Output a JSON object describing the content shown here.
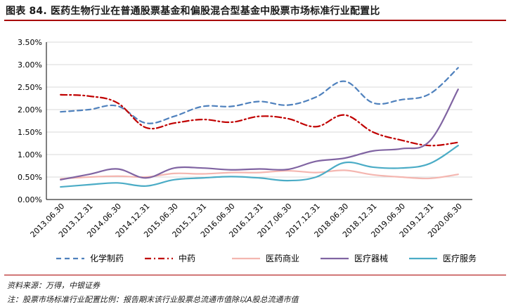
{
  "title": "图表 84. 医药生物行业在普通股票基金和偏股混合型基金中股票市场标准行业配置比",
  "source_note": "资料来源：万得，中银证券",
  "footnote": "注：股票市场标准行业配置比例：报告期末该行业股票总流通市值除以A股总流通市值",
  "chart_data": {
    "type": "line",
    "categories": [
      "2013.06.30",
      "2013.12.31",
      "2014.06.30",
      "2014.12.31",
      "2015.06.30",
      "2015.12.31",
      "2016.06.30",
      "2016.12.31",
      "2017.06.30",
      "2017.12.31",
      "2018.06.30",
      "2018.12.31",
      "2019.06.30",
      "2019.12.31",
      "2020.06.30"
    ],
    "y_ticks": [
      "0.00%",
      "0.50%",
      "1.00%",
      "1.50%",
      "2.00%",
      "2.50%",
      "3.00%",
      "3.50%"
    ],
    "ylim": [
      0,
      3.5
    ],
    "grid": true,
    "legend_position": "bottom",
    "series": [
      {
        "name": "化学制药",
        "color": "#4f81bd",
        "style": "dash",
        "values": [
          1.95,
          2.0,
          2.08,
          1.7,
          1.85,
          2.07,
          2.07,
          2.18,
          2.1,
          2.28,
          2.63,
          2.15,
          2.22,
          2.35,
          2.93
        ]
      },
      {
        "name": "中药",
        "color": "#c00000",
        "style": "dashdot",
        "values": [
          2.33,
          2.3,
          2.15,
          1.6,
          1.7,
          1.78,
          1.72,
          1.85,
          1.8,
          1.62,
          1.88,
          1.5,
          1.32,
          1.2,
          1.27
        ]
      },
      {
        "name": "医药商业",
        "color": "#f4b6b0",
        "style": "solid",
        "values": [
          0.46,
          0.5,
          0.52,
          0.5,
          0.58,
          0.57,
          0.6,
          0.6,
          0.64,
          0.6,
          0.65,
          0.55,
          0.5,
          0.47,
          0.56
        ]
      },
      {
        "name": "医疗器械",
        "color": "#8064a2",
        "style": "solid",
        "values": [
          0.44,
          0.56,
          0.68,
          0.48,
          0.7,
          0.7,
          0.66,
          0.68,
          0.67,
          0.85,
          0.92,
          1.08,
          1.13,
          1.3,
          2.45
        ]
      },
      {
        "name": "医疗服务",
        "color": "#4bacc6",
        "style": "solid",
        "values": [
          0.28,
          0.33,
          0.37,
          0.3,
          0.44,
          0.48,
          0.51,
          0.48,
          0.42,
          0.5,
          0.82,
          0.72,
          0.7,
          0.8,
          1.2
        ]
      }
    ]
  }
}
